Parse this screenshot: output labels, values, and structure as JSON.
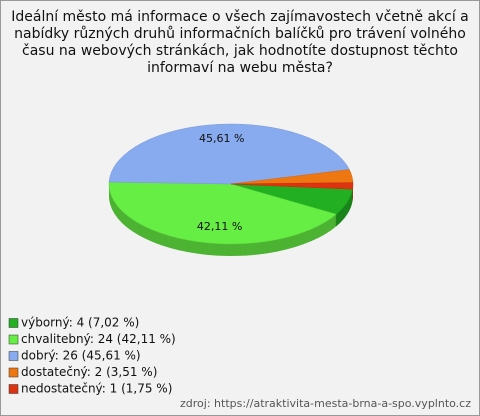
{
  "chart_data": {
    "type": "pie",
    "title": "Ideální město má informace o všech zajímavostech včetně akcí a nabídky různých druhů informačních balíčků pro trávení volného času na webových stránkách, jak hodnotíte dostupnost těchto informaví na webu města?",
    "categories": [
      "výborný",
      "chvalitebný",
      "dobrý",
      "dostatečný",
      "nedostatečný"
    ],
    "values": [
      7.02,
      42.11,
      45.61,
      3.51,
      1.75
    ],
    "value_labels": [
      null,
      "42,11 %",
      "45,61 %",
      null,
      null
    ],
    "legend_labels": [
      "výborný: 4 (7,02 %)",
      "chvalitebný: 24 (42,11 %)",
      "dobrý: 26 (45,61 %)",
      "dostatečný: 2 (3,51 %)",
      "nedostatečný: 1 (1,75 %)"
    ],
    "colors": [
      "#22b022",
      "#66ee44",
      "#88aaee",
      "#ee7711",
      "#dd3311"
    ],
    "source": "zdroj: https://atraktivita-mesta-brna-a-spo.vyplnto.cz"
  }
}
